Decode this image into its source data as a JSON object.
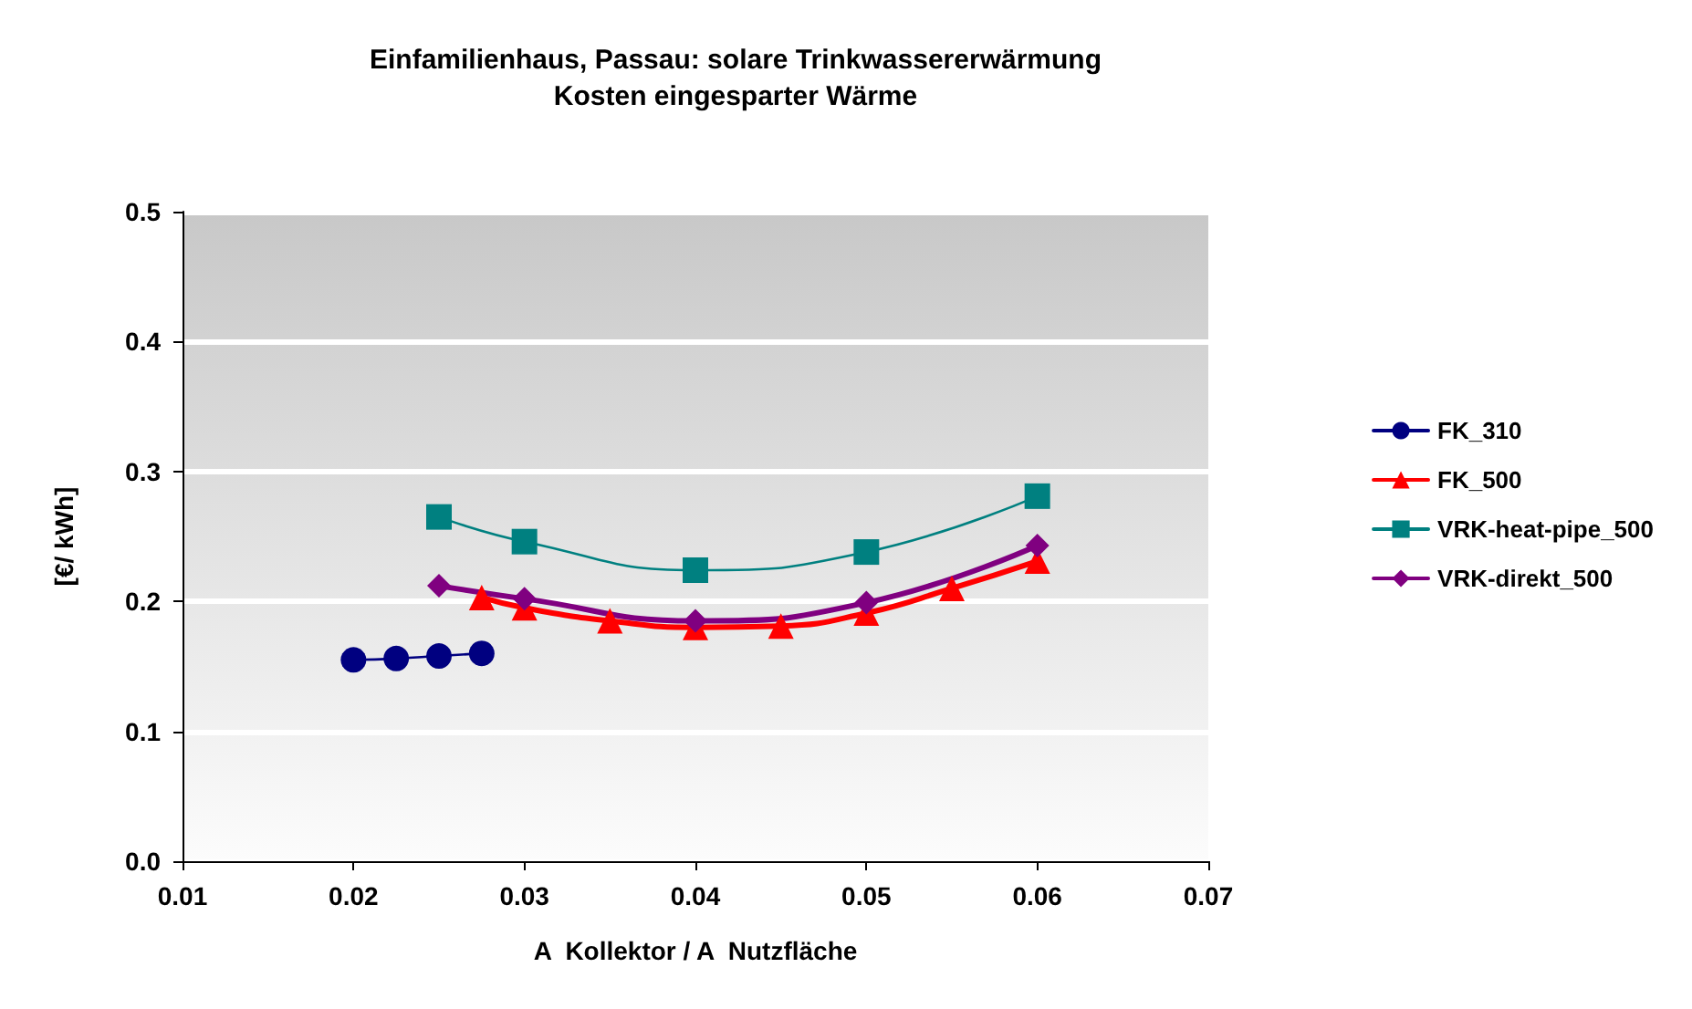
{
  "chart_data": {
    "type": "line",
    "title": "Einfamilienhaus, Passau: solare Trinkwassererwärmung\nKosten eingesparter Wärme",
    "xlabel": "A  Kollektor / A  Nutzfläche",
    "ylabel": "[€/ kWh]",
    "xlim": [
      0.01,
      0.07
    ],
    "xticks": [
      0.01,
      0.02,
      0.03,
      0.04,
      0.05,
      0.06,
      0.07
    ],
    "ylim": [
      0,
      0.5
    ],
    "yticks": [
      {
        "value": 0,
        "label": "0.0"
      },
      0.1,
      0.2,
      0.3,
      0.4,
      0.5
    ],
    "grid": "y",
    "legend": "right",
    "series": [
      {
        "name": "FK_310",
        "color": "#000080",
        "marker": "circle",
        "x": [
          0.02,
          0.0225,
          0.025,
          0.0275
        ],
        "values": [
          0.155,
          0.156,
          0.158,
          0.16
        ]
      },
      {
        "name": "FK_500",
        "color": "#ff0000",
        "marker": "triangle",
        "x": [
          0.0275,
          0.03,
          0.035,
          0.04,
          0.045,
          0.05,
          0.055,
          0.06
        ],
        "values": [
          0.203,
          0.195,
          0.185,
          0.18,
          0.181,
          0.191,
          0.21,
          0.231
        ]
      },
      {
        "name": "VRK-heat-pipe_500",
        "color": "#008080",
        "marker": "square",
        "x": [
          0.025,
          0.03,
          0.04,
          0.05,
          0.06
        ],
        "values": [
          0.265,
          0.246,
          0.224,
          0.238,
          0.281
        ]
      },
      {
        "name": "VRK-direkt_500",
        "color": "#800080",
        "marker": "diamond",
        "x": [
          0.025,
          0.03,
          0.04,
          0.05,
          0.06
        ],
        "values": [
          0.212,
          0.202,
          0.185,
          0.199,
          0.243
        ]
      }
    ]
  }
}
